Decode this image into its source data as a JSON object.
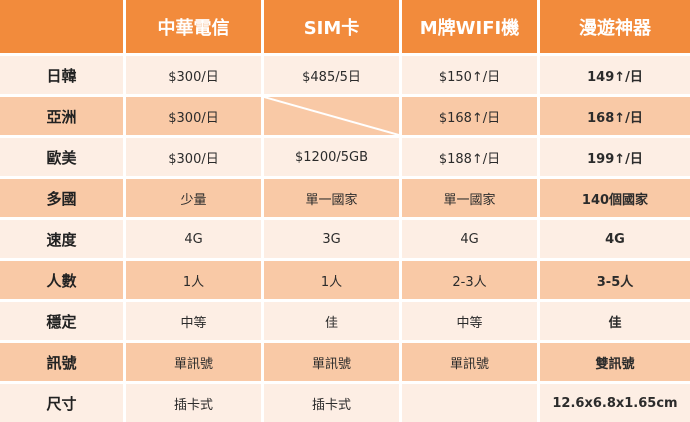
{
  "table": {
    "headers": [
      "中華電信",
      "SIM卡",
      "M牌WIFI機",
      "漫遊神器"
    ],
    "rows": [
      {
        "label": "日韓",
        "cells": [
          "$300/日",
          "$485/5日",
          "$150↑/日",
          "149↑/日"
        ]
      },
      {
        "label": "亞洲",
        "cells": [
          "$300/日",
          "",
          "$168↑/日",
          "168↑/日"
        ]
      },
      {
        "label": "歐美",
        "cells": [
          "$300/日",
          "$1200/5GB",
          "$188↑/日",
          "199↑/日"
        ]
      },
      {
        "label": "多國",
        "cells": [
          "少量",
          "單一國家",
          "單一國家",
          "140個國家"
        ]
      },
      {
        "label": "速度",
        "cells": [
          "4G",
          "3G",
          "4G",
          "4G"
        ]
      },
      {
        "label": "人數",
        "cells": [
          "1人",
          "1人",
          "2-3人",
          "3-5人"
        ]
      },
      {
        "label": "穩定",
        "cells": [
          "中等",
          "佳",
          "中等",
          "佳"
        ]
      },
      {
        "label": "訊號",
        "cells": [
          "單訊號",
          "單訊號",
          "單訊號",
          "雙訊號"
        ]
      },
      {
        "label": "尺寸",
        "cells": [
          "插卡式",
          "插卡式",
          "",
          "12.6x6.8x1.65cm"
        ]
      }
    ]
  },
  "colors": {
    "header_bg": "#f28b3c",
    "row_light": "#fdeee4",
    "row_dark": "#f9c9a6",
    "diagonal_line": "#ffffff"
  }
}
